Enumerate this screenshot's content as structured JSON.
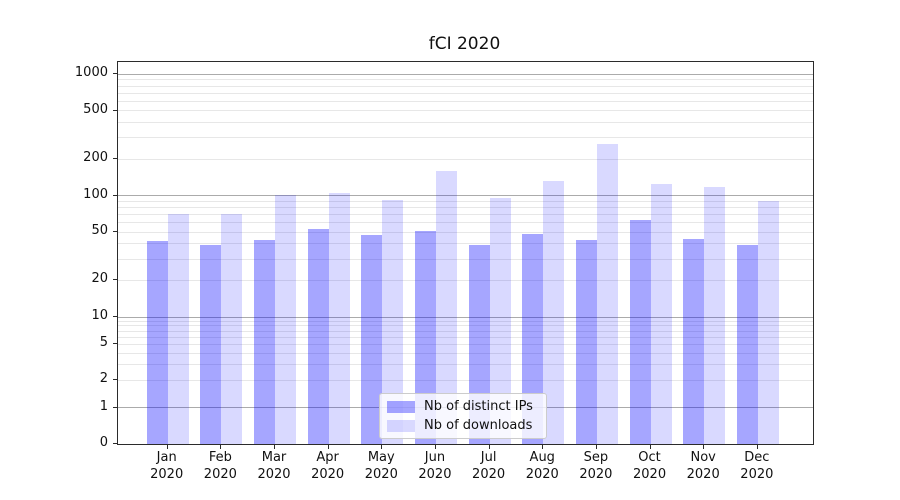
{
  "chart_data": {
    "type": "bar",
    "title": "fCI 2020",
    "categories": [
      "Jan 2020",
      "Feb 2020",
      "Mar 2020",
      "Apr 2020",
      "May 2020",
      "Jun 2020",
      "Jul 2020",
      "Aug 2020",
      "Sep 2020",
      "Oct 2020",
      "Nov 2020",
      "Dec 2020"
    ],
    "series": [
      {
        "name": "Nb of distinct IPs",
        "color": "#0000ff",
        "opacity": 0.35,
        "values": [
          42,
          39,
          43,
          53,
          47,
          51,
          39,
          48,
          43,
          63,
          44,
          39
        ]
      },
      {
        "name": "Nb of downloads",
        "color": "#0000ff",
        "opacity": 0.15,
        "values": [
          71,
          71,
          102,
          105,
          92,
          161,
          95,
          132,
          265,
          126,
          119,
          90
        ]
      }
    ],
    "xlabel": "",
    "ylabel": "",
    "yscale": "symlog",
    "yticks": [
      1000,
      500,
      200,
      100,
      50,
      20,
      10,
      5,
      2,
      1,
      0
    ],
    "ylim": [
      0,
      1250
    ],
    "grid": "both",
    "legend_position": "lower-center"
  }
}
